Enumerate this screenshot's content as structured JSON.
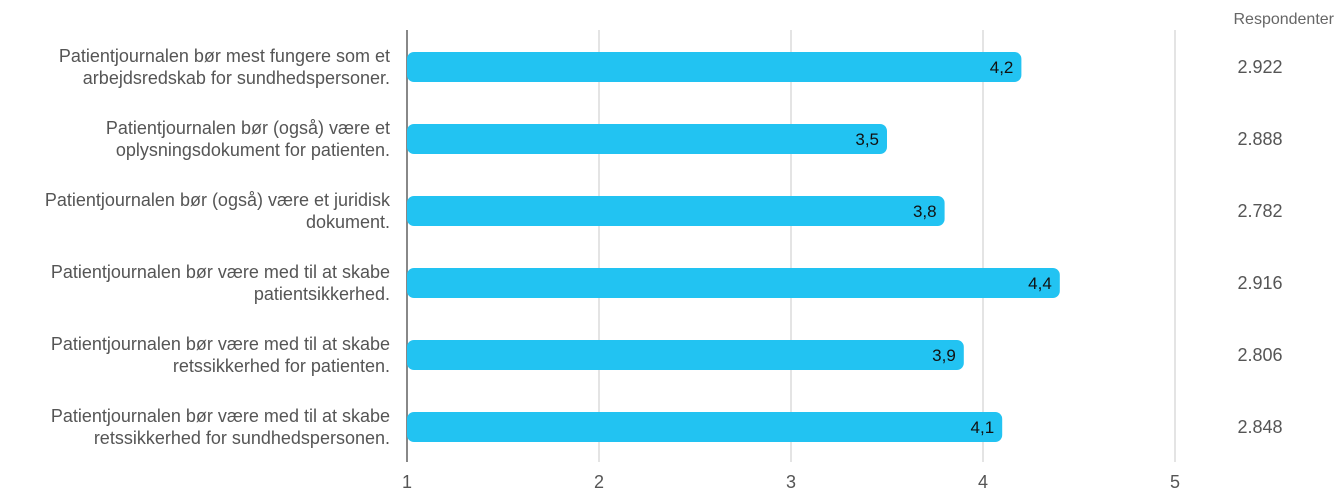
{
  "chart_data": {
    "type": "bar",
    "orientation": "horizontal",
    "categories": [
      [
        "Patientjournalen bør mest fungere som et",
        "arbejdsredskab for sundhedspersoner."
      ],
      [
        "Patientjournalen bør (også) være et",
        "oplysningsdokument for patienten."
      ],
      [
        "Patientjournalen bør (også) være et juridisk",
        "dokument."
      ],
      [
        "Patientjournalen bør være med til at skabe",
        "patientsikkerhed."
      ],
      [
        "Patientjournalen bør være med til at skabe",
        "retssikkerhed for patienten."
      ],
      [
        "Patientjournalen bør være med til at skabe",
        "retssikkerhed for sundhedspersonen."
      ]
    ],
    "values": [
      4.2,
      3.5,
      3.8,
      4.4,
      3.9,
      4.1
    ],
    "value_labels": [
      "4,2",
      "3,5",
      "3,8",
      "4,4",
      "3,9",
      "4,1"
    ],
    "xlim": [
      1,
      5
    ],
    "xticks": [
      1,
      2,
      3,
      4,
      5
    ],
    "xtick_labels": [
      "1",
      "2",
      "3",
      "4",
      "5"
    ],
    "grid": true,
    "respondents_header": "Respondenter",
    "respondents": [
      "2.922",
      "2.888",
      "2.782",
      "2.916",
      "2.806",
      "2.848"
    ],
    "colors": {
      "bar": "#22c3f2",
      "grid": "#c8c8c8",
      "axis": "#888888"
    }
  }
}
